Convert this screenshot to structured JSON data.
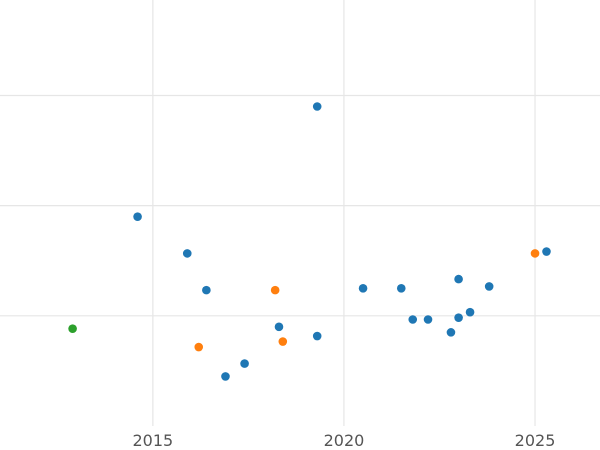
{
  "chart_data": {
    "type": "scatter",
    "title": "",
    "xlabel": "",
    "ylabel": "",
    "xlim": [
      2011,
      2026.7
    ],
    "ylim": [
      0,
      11.6
    ],
    "x_ticks": [
      2015,
      2020,
      2025
    ],
    "x_tick_labels": [
      "2015",
      "2020",
      "2025"
    ],
    "y_gridlines": [
      3,
      6,
      9
    ],
    "grid": true,
    "legend": "none",
    "colors": {
      "blue": "#1f77b4",
      "orange": "#ff7f0e",
      "green": "#2ca02c"
    },
    "series": [
      {
        "color": "#1f77b4",
        "x": [
          2014.6,
          2015.9,
          2016.4,
          2016.9,
          2017.4,
          2018.3,
          2019.3,
          2019.3,
          2020.5,
          2021.5,
          2021.8,
          2022.2,
          2022.8,
          2023.0,
          2023.0,
          2023.3,
          2023.8,
          2025.3
        ],
        "y": [
          5.7,
          4.7,
          3.7,
          1.35,
          1.7,
          2.7,
          8.7,
          2.45,
          3.75,
          3.75,
          2.9,
          2.9,
          2.55,
          4.0,
          2.95,
          3.1,
          3.8,
          4.75
        ]
      },
      {
        "color": "#ff7f0e",
        "x": [
          2016.2,
          2018.2,
          2018.4,
          2025.0
        ],
        "y": [
          2.15,
          3.7,
          2.3,
          4.7
        ]
      },
      {
        "color": "#2ca02c",
        "x": [
          2012.9
        ],
        "y": [
          2.65
        ]
      }
    ]
  }
}
